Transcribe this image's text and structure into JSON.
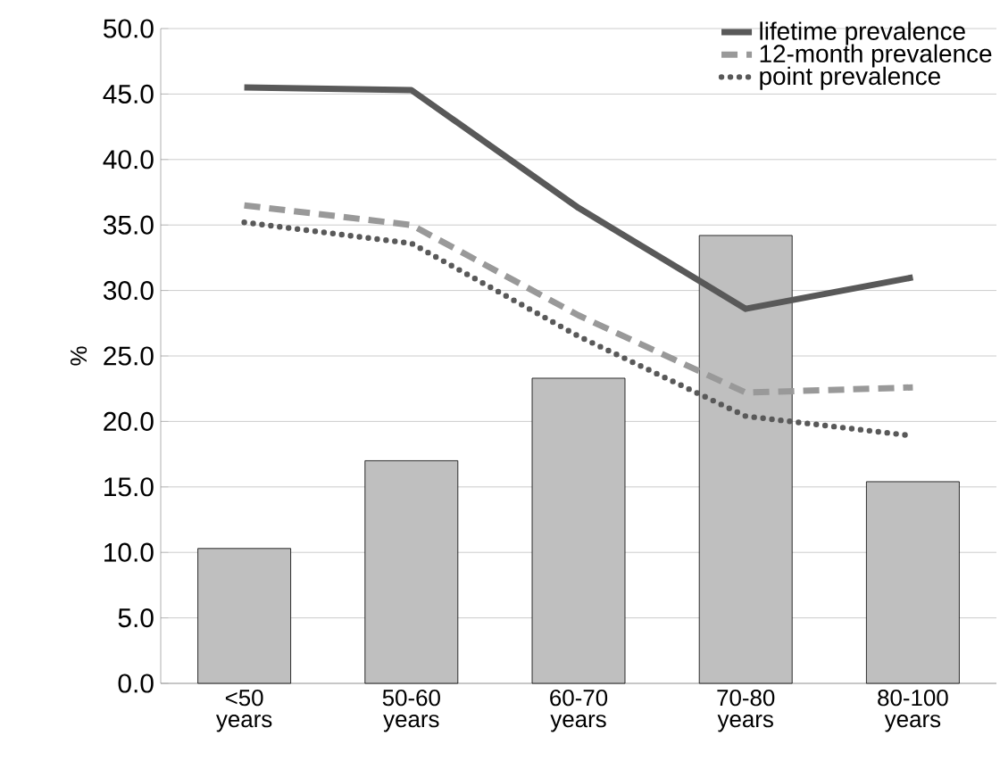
{
  "chart_data": {
    "type": "bar",
    "ylabel": "%",
    "categories": [
      "<50\nyears",
      "50-60\nyears",
      "60-70\nyears",
      "70-80\nyears",
      "80-100\nyears"
    ],
    "series": [
      {
        "color": "#bfbfbf",
        "values": [
          10.3,
          17.0,
          23.3,
          34.2,
          15.4
        ]
      },
      {
        "type": "line",
        "name": "lifetime prevalence",
        "color": "#595959",
        "line_style": "solid",
        "values": [
          45.5,
          45.3,
          36.3,
          28.6,
          31.0
        ]
      },
      {
        "type": "line",
        "name": "12-month prevalence",
        "color": "#999999",
        "line_style": "dashed",
        "values": [
          36.5,
          35.0,
          28.1,
          22.2,
          22.6
        ]
      },
      {
        "type": "line",
        "name": "point prevalence",
        "color": "#595959",
        "line_style": "dotted",
        "values": [
          35.2,
          33.6,
          26.5,
          20.4,
          18.9
        ]
      }
    ],
    "ylim": [
      0,
      50
    ],
    "yticks": [
      {
        "value": 0,
        "label": "0.0"
      },
      {
        "value": 5,
        "label": "5.0"
      },
      {
        "value": 10,
        "label": "10.0"
      },
      {
        "value": 15,
        "label": "15.0"
      },
      {
        "value": 20,
        "label": "20.0"
      },
      {
        "value": 25,
        "label": "25.0"
      },
      {
        "value": 30,
        "label": "30.0"
      },
      {
        "value": 35,
        "label": "35.0"
      },
      {
        "value": 40,
        "label": "40.0"
      },
      {
        "value": 45,
        "label": "45.0"
      },
      {
        "value": 50,
        "label": "50.0"
      }
    ],
    "grid": "y",
    "legend": "top right"
  }
}
